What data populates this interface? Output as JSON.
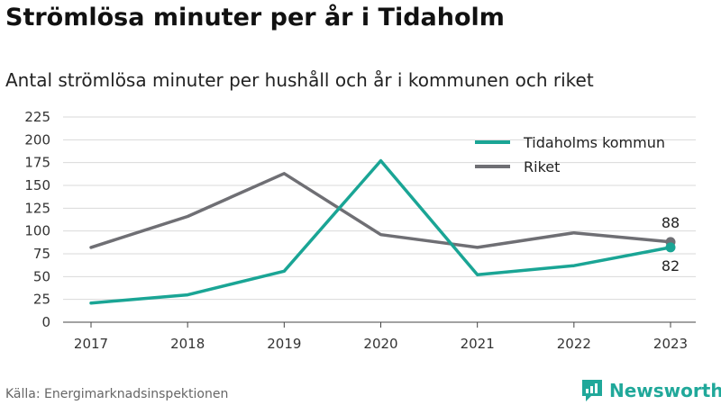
{
  "title": "Strömlösa minuter per år i Tidaholm",
  "subtitle": "Antal strömlösa minuter per hushåll och år i kommunen och riket",
  "source": "Källa: Energimarknadsinspektionen",
  "brand": {
    "name": "Newsworthy",
    "icon": "newsworthy-logo-icon"
  },
  "colors": {
    "accent": "#1aa595",
    "secondary": "#6f6f74",
    "grid": "#d9d9d9"
  },
  "chart_data": {
    "type": "line",
    "x": [
      "2017",
      "2018",
      "2019",
      "2020",
      "2021",
      "2022",
      "2023"
    ],
    "ylim": [
      0,
      225
    ],
    "yticks": [
      0,
      25,
      50,
      75,
      100,
      125,
      150,
      175,
      200,
      225
    ],
    "grid": true,
    "legend_position": "top-right",
    "series": [
      {
        "name": "Tidaholms kommun",
        "color": "#1aa595",
        "values": [
          21,
          30,
          56,
          177,
          52,
          62,
          82
        ],
        "end_label": "82"
      },
      {
        "name": "Riket",
        "color": "#6f6f74",
        "values": [
          82,
          116,
          163,
          96,
          82,
          98,
          88
        ],
        "end_label": "88"
      }
    ]
  }
}
